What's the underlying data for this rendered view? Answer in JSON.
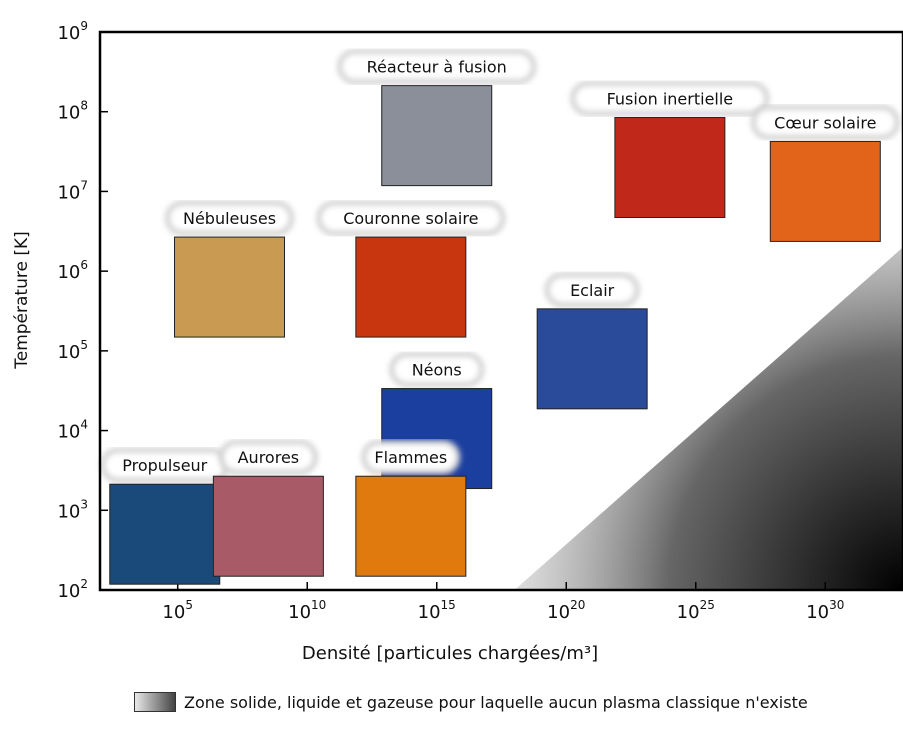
{
  "chart_data": {
    "type": "scatter",
    "xscale": "log",
    "yscale": "log",
    "xlim": [
      "10^2",
      "10^33"
    ],
    "ylim": [
      "10^2",
      "10^9"
    ],
    "xlabel": "Densité [particules chargées/m³]",
    "ylabel": "Température [K]",
    "x_ticks": [
      {
        "base": "10",
        "exp": "5"
      },
      {
        "base": "10",
        "exp": "10"
      },
      {
        "base": "10",
        "exp": "15"
      },
      {
        "base": "10",
        "exp": "20"
      },
      {
        "base": "10",
        "exp": "25"
      },
      {
        "base": "10",
        "exp": "30"
      }
    ],
    "y_ticks": [
      {
        "base": "10",
        "exp": "2"
      },
      {
        "base": "10",
        "exp": "3"
      },
      {
        "base": "10",
        "exp": "4"
      },
      {
        "base": "10",
        "exp": "5"
      },
      {
        "base": "10",
        "exp": "6"
      },
      {
        "base": "10",
        "exp": "7"
      },
      {
        "base": "10",
        "exp": "8"
      },
      {
        "base": "10",
        "exp": "9"
      }
    ],
    "points": [
      {
        "label": "Réacteur à fusion",
        "x_exp": 15,
        "y_exp": 7.7,
        "color": "#8a8f99"
      },
      {
        "label": "Fusion inertielle",
        "x_exp": 24,
        "y_exp": 7.3,
        "color": "#c0281a"
      },
      {
        "label": "Cœur solaire",
        "x_exp": 30,
        "y_exp": 7.0,
        "color": "#e2641a"
      },
      {
        "label": "Nébuleuses",
        "x_exp": 7,
        "y_exp": 5.8,
        "color": "#c89a52"
      },
      {
        "label": "Couronne solaire",
        "x_exp": 14,
        "y_exp": 5.8,
        "color": "#c8360f"
      },
      {
        "label": "Eclair",
        "x_exp": 21,
        "y_exp": 4.9,
        "color": "#2a4a9a"
      },
      {
        "label": "Néons",
        "x_exp": 15,
        "y_exp": 3.9,
        "color": "#1b3f9e"
      },
      {
        "label": "Propulseur",
        "x_exp": 4.5,
        "y_exp": 2.7,
        "color": "#1a4a7a"
      },
      {
        "label": "Aurores",
        "x_exp": 8.5,
        "y_exp": 2.8,
        "color": "#a85a66"
      },
      {
        "label": "Flammes",
        "x_exp": 14,
        "y_exp": 2.8,
        "color": "#e07a0e"
      }
    ],
    "shaded_region": {
      "label": "Zone solide, liquide et gazeuse pour laquelle aucun plasma classique n'existe"
    }
  }
}
